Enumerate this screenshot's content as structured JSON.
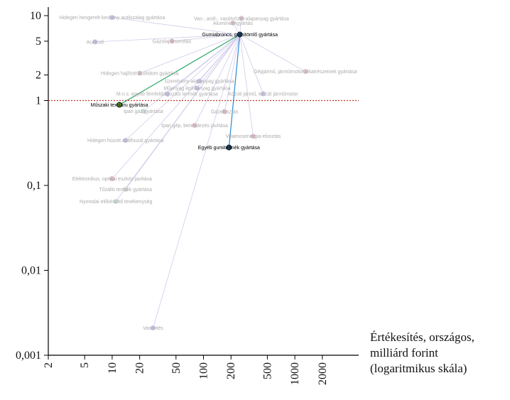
{
  "chart_data": {
    "type": "scatter",
    "log_x": true,
    "log_y": true,
    "x_label_lines": [
      "Értékesítés, országos,",
      "milliárd forint",
      "(logaritmikus skála)"
    ],
    "xlim": [
      2,
      5000
    ],
    "ylim": [
      0.001,
      10
    ],
    "xticks": [
      2,
      5,
      10,
      20,
      50,
      100,
      200,
      500,
      1000,
      2000
    ],
    "yticks": [
      {
        "value": 0.001,
        "label": "0,001"
      },
      {
        "value": 0.01,
        "label": "0,01"
      },
      {
        "value": 0.1,
        "label": "0,1"
      },
      1,
      2,
      5,
      10
    ],
    "reference_line": {
      "value": 1,
      "color": "#c0392b"
    },
    "hub": {
      "label": "Gumiabroncs, gumitömlő gyártása",
      "x": 250,
      "y": 6,
      "color": "#1f4e79"
    },
    "points": [
      {
        "label": "Hidegen hengerelt keskeny acélszalag gyártása",
        "x": 10,
        "y": 9.5,
        "color": "#c9c3e8",
        "line_color": "#cfcbea"
      },
      {
        "label": "Vas-, acél-, vasötvözet-alapanyag gyártása",
        "x": 260,
        "y": 9.3,
        "color": "#d9c3cf",
        "line_color": "#cfcbea"
      },
      {
        "label": "Alumíniumgyártás",
        "x": 210,
        "y": 8.2,
        "color": "#d9c3cf",
        "line_color": "#cfcbea"
      },
      {
        "label": "Acélcső",
        "x": 6.5,
        "y": 4.9,
        "color": "#c9c3e8",
        "line_color": "#cfcbea"
      },
      {
        "label": "Gázolaj-finomítás",
        "x": 45,
        "y": 5,
        "color": "#e0bcc6",
        "line_color": "#cfcbea"
      },
      {
        "label": "Gépjármű, járműmotor alkatrészeinek gyártása",
        "x": 1300,
        "y": 2.2,
        "color": "#d9c3cf",
        "line_color": "#cfcbea"
      },
      {
        "label": "Hidegen hajlított acélidom gyártása",
        "x": 20,
        "y": 2.1,
        "color": "#d9c3cf",
        "line_color": "#cfcbea"
      },
      {
        "label": "Szerelvény-alapanyag gyártása",
        "x": 90,
        "y": 1.7,
        "color": "#c9c3e8",
        "line_color": "#cfcbea"
      },
      {
        "label": "Műanyag építőanyag gyártása",
        "x": 85,
        "y": 1.4,
        "color": "#c9c3e8",
        "line_color": "#cfcbea"
      },
      {
        "label": "M.n.s. egyéb fémfeldolgozási termék gyártása",
        "x": 40,
        "y": 1.2,
        "color": "#c9c3e8",
        "line_color": "#cfcbea"
      },
      {
        "label": "Közúti jármű, közúti járműmotor",
        "x": 450,
        "y": 1.2,
        "color": "#c9c3e8",
        "line_color": "#cfcbea"
      },
      {
        "label": "Műszaki textiláru gyártása",
        "x": 12,
        "y": 0.89,
        "color": "#6aaa3a",
        "line_color": "#2eaa6a"
      },
      {
        "label": "Ipari gáz gyártása",
        "x": 22,
        "y": 0.75,
        "color": "#c9e0d8",
        "line_color": "#cfcbea"
      },
      {
        "label": "Gázelosztás",
        "x": 170,
        "y": 0.74,
        "color": "#e0bcc6",
        "line_color": "#cfcbea"
      },
      {
        "label": "Ipari gép, berendezés javítása",
        "x": 80,
        "y": 0.51,
        "color": "#e0bcc6",
        "line_color": "#cfcbea"
      },
      {
        "label": "Villamosenergia-elosztás",
        "x": 350,
        "y": 0.38,
        "color": "#e0bcc6",
        "line_color": "#cfcbea"
      },
      {
        "label": "Egyéb gumitermék gyártása",
        "x": 190,
        "y": 0.28,
        "color": "#1f4e79",
        "line_color": "#2a8ad4"
      },
      {
        "label": "Hidegen húzott acélhuzal gyártása",
        "x": 14,
        "y": 0.34,
        "color": "#c9c3e8",
        "line_color": "#cfcbea"
      },
      {
        "label": "Elektronikus, optikai eszköz javítása",
        "x": 10,
        "y": 0.12,
        "color": "#e0bcc6",
        "line_color": "#cfcbea"
      },
      {
        "label": "Tűzálló termék gyártása",
        "x": 14,
        "y": 0.09,
        "color": "#d9d9d9",
        "line_color": "#cfcbea"
      },
      {
        "label": "Nyomdai előkészítő tevékenység",
        "x": 11,
        "y": 0.065,
        "color": "#c9e0d8",
        "line_color": "#cfcbea"
      },
      {
        "label": "Vasöntés",
        "x": 28,
        "y": 0.0021,
        "color": "#c9c3e8",
        "line_color": "#cfcbea"
      }
    ]
  }
}
